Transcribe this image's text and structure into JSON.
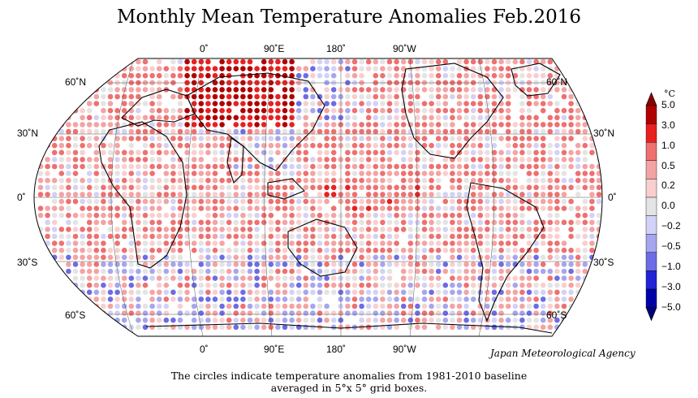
{
  "title": "Monthly Mean Temperature Anomalies Feb.2016",
  "agency": "Japan Meteorological Agency",
  "caption_line1": "The circles indicate temperature anomalies from 1981-2010 baseline",
  "caption_line2": "averaged in 5°x 5° grid boxes.",
  "lon_labels": [
    "0˚",
    "90˚E",
    "180˚",
    "90˚W"
  ],
  "lat_labels": [
    "60˚N",
    "30˚N",
    "0˚",
    "30˚S",
    "60˚S"
  ],
  "legend": {
    "unit": "°C",
    "ticks": [
      "5.0",
      "3.0",
      "1.0",
      "0.5",
      "0.2",
      "0.0",
      "−0.2",
      "−0.5",
      "−1.0",
      "−3.0",
      "−5.0"
    ],
    "colors": [
      "#b00000",
      "#e82020",
      "#ee7070",
      "#f4a3a3",
      "#f8cfcf",
      "#e4e4e4",
      "#d2d2f6",
      "#a6a6ee",
      "#6c6ce4",
      "#2323d6",
      "#0000a8"
    ]
  },
  "colors": {
    "background": "#ffffff",
    "graticule": "#444444",
    "coast": "#000000"
  }
}
